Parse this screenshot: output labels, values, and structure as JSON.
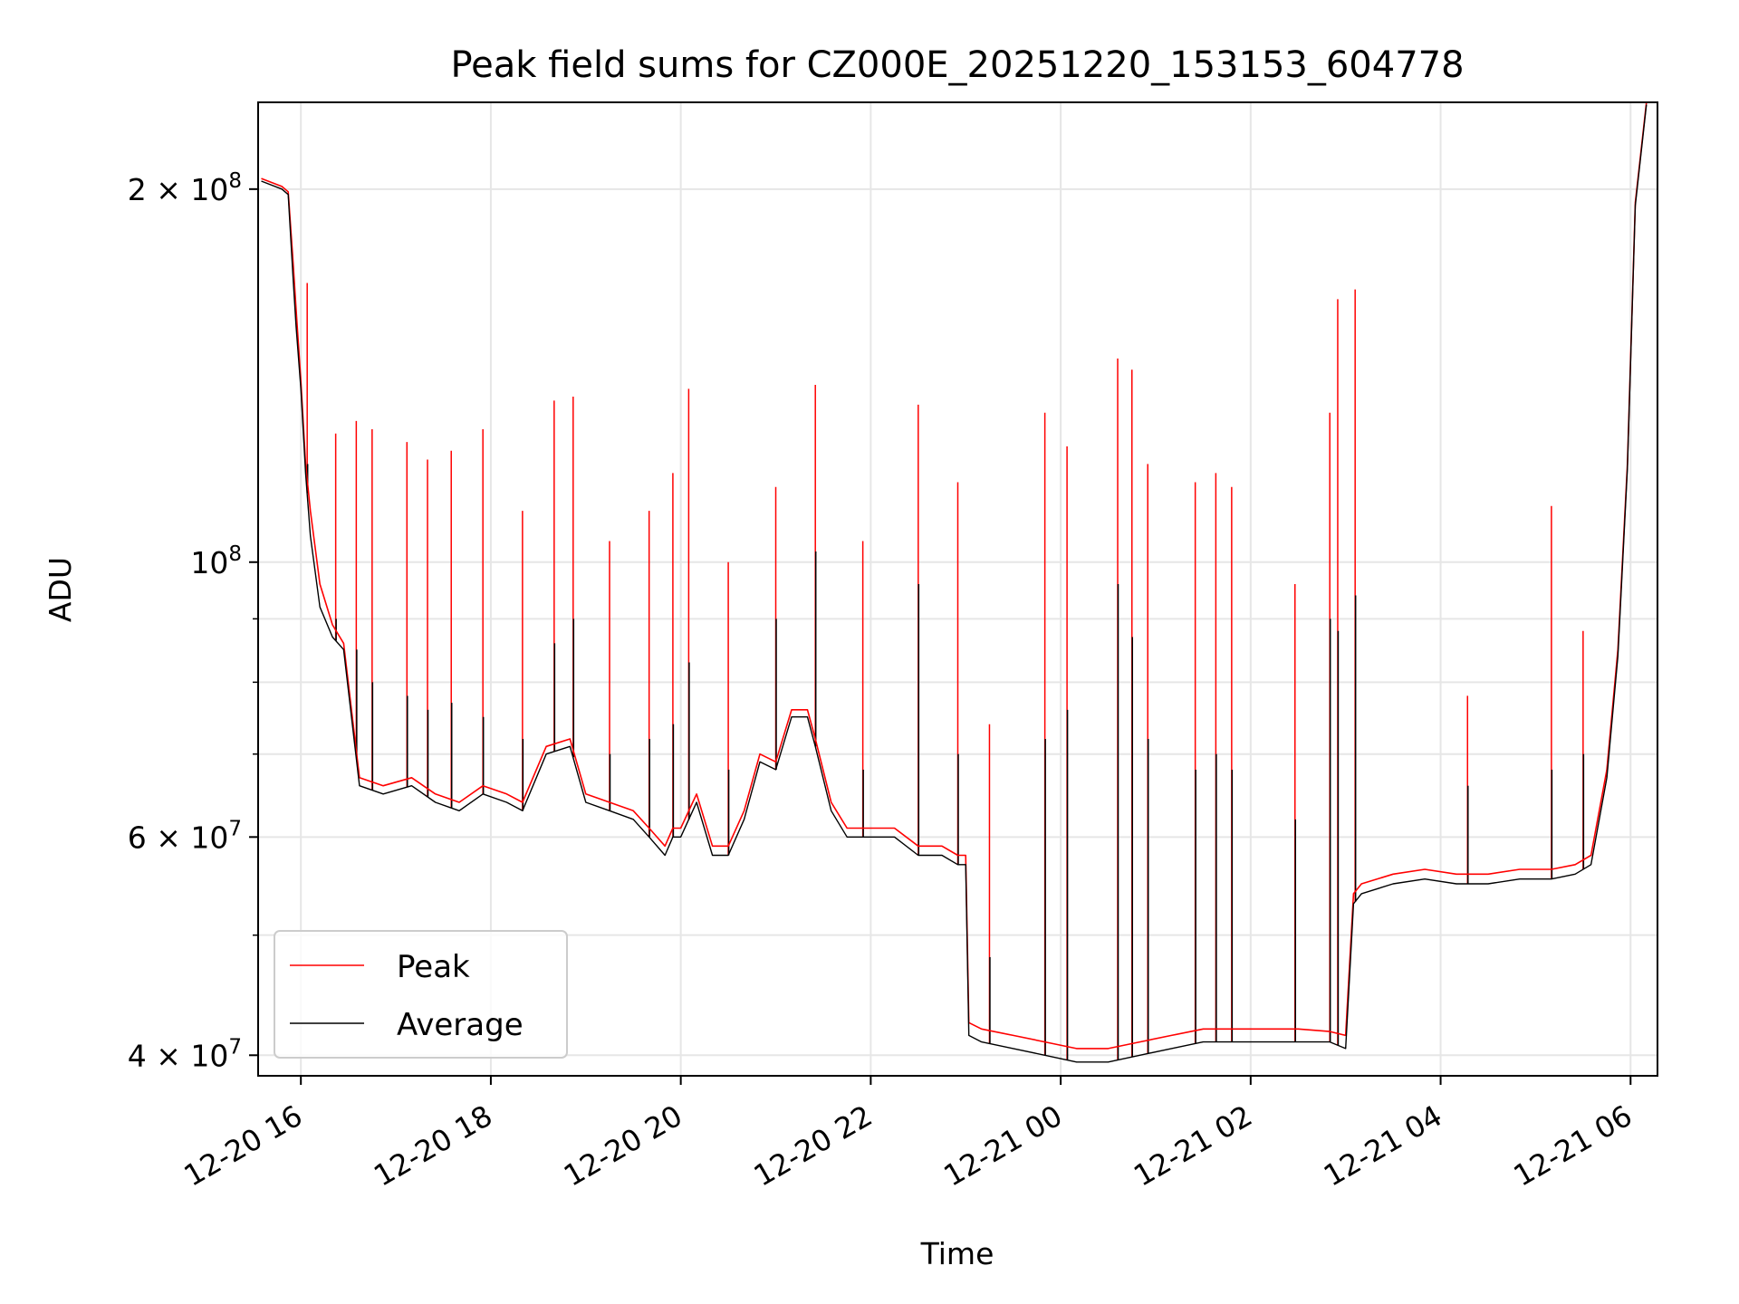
{
  "chart_data": {
    "type": "line",
    "title": "Peak field sums for CZ000E_20251220_153153_604778",
    "xlabel": "Time",
    "ylabel": "ADU",
    "yscale": "log",
    "grid": true,
    "legend_position": "lower-left",
    "xlim": [
      "2025-12-20 15:33",
      "2025-12-21 06:17"
    ],
    "ylim": [
      38500000,
      235000000
    ],
    "x_ticks": [
      "2025-12-20 16:00",
      "2025-12-20 18:00",
      "2025-12-20 20:00",
      "2025-12-20 22:00",
      "2025-12-21 00:00",
      "2025-12-21 02:00",
      "2025-12-21 04:00",
      "2025-12-21 06:00"
    ],
    "x_tick_labels": [
      "12-20 16",
      "12-20 18",
      "12-20 20",
      "12-20 22",
      "12-21 00",
      "12-21 02",
      "12-21 04",
      "12-21 06"
    ],
    "y_major_ticks": [
      40000000,
      60000000,
      100000000,
      200000000
    ],
    "y_major_labels": [
      {
        "mantissa": "4",
        "exp": "7"
      },
      {
        "mantissa": "6",
        "exp": "7"
      },
      {
        "mantissa": "",
        "exp": "8"
      },
      {
        "mantissa": "2",
        "exp": "8"
      }
    ],
    "y_minor_ticks": [
      50000000,
      70000000,
      80000000,
      90000000
    ],
    "series": [
      {
        "name": "Peak",
        "color": "#ff0000",
        "x": [
          "2025-12-20 15:35",
          "2025-12-20 15:48",
          "2025-12-20 15:52",
          "2025-12-20 15:55",
          "2025-12-20 15:57",
          "2025-12-20 16:00",
          "2025-12-20 16:03",
          "2025-12-20 16:06",
          "2025-12-20 16:12",
          "2025-12-20 16:20",
          "2025-12-20 16:27",
          "2025-12-20 16:37",
          "2025-12-20 16:52",
          "2025-12-20 17:10",
          "2025-12-20 17:25",
          "2025-12-20 17:40",
          "2025-12-20 17:55",
          "2025-12-20 18:10",
          "2025-12-20 18:20",
          "2025-12-20 18:35",
          "2025-12-20 18:50",
          "2025-12-20 19:00",
          "2025-12-20 19:15",
          "2025-12-20 19:30",
          "2025-12-20 19:40",
          "2025-12-20 19:50",
          "2025-12-20 19:55",
          "2025-12-20 20:00",
          "2025-12-20 20:10",
          "2025-12-20 20:20",
          "2025-12-20 20:30",
          "2025-12-20 20:40",
          "2025-12-20 20:50",
          "2025-12-20 21:00",
          "2025-12-20 21:10",
          "2025-12-20 21:20",
          "2025-12-20 21:25",
          "2025-12-20 21:35",
          "2025-12-20 21:45",
          "2025-12-20 22:00",
          "2025-12-20 22:15",
          "2025-12-20 22:30",
          "2025-12-20 22:45",
          "2025-12-20 22:55",
          "2025-12-20 23:00",
          "2025-12-20 23:02",
          "2025-12-20 23:10",
          "2025-12-20 23:30",
          "2025-12-20 23:50",
          "2025-12-21 00:10",
          "2025-12-21 00:30",
          "2025-12-21 00:50",
          "2025-12-21 01:10",
          "2025-12-21 01:30",
          "2025-12-21 01:50",
          "2025-12-21 02:10",
          "2025-12-21 02:30",
          "2025-12-21 02:50",
          "2025-12-21 03:00",
          "2025-12-21 03:05",
          "2025-12-21 03:10",
          "2025-12-21 03:30",
          "2025-12-21 03:50",
          "2025-12-21 04:10",
          "2025-12-21 04:30",
          "2025-12-21 04:50",
          "2025-12-21 05:10",
          "2025-12-21 05:25",
          "2025-12-21 05:35",
          "2025-12-21 05:45",
          "2025-12-21 05:52",
          "2025-12-21 05:58",
          "2025-12-21 06:03",
          "2025-12-21 06:10"
        ],
        "y": [
          204000000,
          201000000,
          199000000,
          175000000,
          160000000,
          140000000,
          120000000,
          110000000,
          96000000,
          89000000,
          86000000,
          67000000,
          66000000,
          67000000,
          65000000,
          64000000,
          66000000,
          65000000,
          64000000,
          71000000,
          72000000,
          65000000,
          64000000,
          63000000,
          61000000,
          59000000,
          61000000,
          61000000,
          65000000,
          59000000,
          59000000,
          63000000,
          70000000,
          69000000,
          76000000,
          76000000,
          72000000,
          64000000,
          61000000,
          61000000,
          61000000,
          59000000,
          59000000,
          58000000,
          58000000,
          42500000,
          42000000,
          41500000,
          41000000,
          40500000,
          40500000,
          41000000,
          41500000,
          42000000,
          42000000,
          42000000,
          42000000,
          41800000,
          41500000,
          54000000,
          55000000,
          56000000,
          56500000,
          56000000,
          56000000,
          56500000,
          56500000,
          57000000,
          58000000,
          68000000,
          85000000,
          120000000,
          195000000,
          235000000
        ]
      },
      {
        "name": "Average",
        "color": "#000000",
        "x": [
          "2025-12-20 15:35",
          "2025-12-20 15:48",
          "2025-12-20 15:52",
          "2025-12-20 15:55",
          "2025-12-20 15:57",
          "2025-12-20 16:00",
          "2025-12-20 16:03",
          "2025-12-20 16:06",
          "2025-12-20 16:12",
          "2025-12-20 16:20",
          "2025-12-20 16:27",
          "2025-12-20 16:37",
          "2025-12-20 16:52",
          "2025-12-20 17:10",
          "2025-12-20 17:25",
          "2025-12-20 17:40",
          "2025-12-20 17:55",
          "2025-12-20 18:10",
          "2025-12-20 18:20",
          "2025-12-20 18:35",
          "2025-12-20 18:50",
          "2025-12-20 19:00",
          "2025-12-20 19:15",
          "2025-12-20 19:30",
          "2025-12-20 19:40",
          "2025-12-20 19:50",
          "2025-12-20 19:55",
          "2025-12-20 20:00",
          "2025-12-20 20:10",
          "2025-12-20 20:20",
          "2025-12-20 20:30",
          "2025-12-20 20:40",
          "2025-12-20 20:50",
          "2025-12-20 21:00",
          "2025-12-20 21:10",
          "2025-12-20 21:20",
          "2025-12-20 21:25",
          "2025-12-20 21:35",
          "2025-12-20 21:45",
          "2025-12-20 22:00",
          "2025-12-20 22:15",
          "2025-12-20 22:30",
          "2025-12-20 22:45",
          "2025-12-20 22:55",
          "2025-12-20 23:00",
          "2025-12-20 23:02",
          "2025-12-20 23:10",
          "2025-12-20 23:30",
          "2025-12-20 23:50",
          "2025-12-21 00:10",
          "2025-12-21 00:30",
          "2025-12-21 00:50",
          "2025-12-21 01:10",
          "2025-12-21 01:30",
          "2025-12-21 01:50",
          "2025-12-21 02:10",
          "2025-12-21 02:30",
          "2025-12-21 02:50",
          "2025-12-21 03:00",
          "2025-12-21 03:05",
          "2025-12-21 03:10",
          "2025-12-21 03:30",
          "2025-12-21 03:50",
          "2025-12-21 04:10",
          "2025-12-21 04:30",
          "2025-12-21 04:50",
          "2025-12-21 05:10",
          "2025-12-21 05:25",
          "2025-12-21 05:35",
          "2025-12-21 05:45",
          "2025-12-21 05:52",
          "2025-12-21 05:58",
          "2025-12-21 06:03",
          "2025-12-21 06:10"
        ],
        "y": [
          203000000,
          200000000,
          198000000,
          170000000,
          155000000,
          138000000,
          118000000,
          105000000,
          92000000,
          87000000,
          85000000,
          66000000,
          65000000,
          66000000,
          64000000,
          63000000,
          65000000,
          64000000,
          63000000,
          70000000,
          71000000,
          64000000,
          63000000,
          62000000,
          60000000,
          58000000,
          60000000,
          60000000,
          64000000,
          58000000,
          58000000,
          62000000,
          69000000,
          68000000,
          75000000,
          75000000,
          71000000,
          63000000,
          60000000,
          60000000,
          60000000,
          58000000,
          58000000,
          57000000,
          57000000,
          41500000,
          41000000,
          40500000,
          40000000,
          39500000,
          39500000,
          40000000,
          40500000,
          41000000,
          41000000,
          41000000,
          41000000,
          41000000,
          40500000,
          53000000,
          54000000,
          55000000,
          55500000,
          55000000,
          55000000,
          55500000,
          55500000,
          56000000,
          57000000,
          67000000,
          84000000,
          119000000,
          194000000,
          234000000
        ]
      }
    ],
    "spikes": [
      {
        "x": "2025-12-20 16:04",
        "peak": 168000000,
        "avg": 120000000
      },
      {
        "x": "2025-12-20 16:22",
        "peak": 127000000,
        "avg": 90000000
      },
      {
        "x": "2025-12-20 16:35",
        "peak": 130000000,
        "avg": 85000000
      },
      {
        "x": "2025-12-20 16:45",
        "peak": 128000000,
        "avg": 80000000
      },
      {
        "x": "2025-12-20 17:07",
        "peak": 125000000,
        "avg": 78000000
      },
      {
        "x": "2025-12-20 17:20",
        "peak": 121000000,
        "avg": 76000000
      },
      {
        "x": "2025-12-20 17:35",
        "peak": 123000000,
        "avg": 77000000
      },
      {
        "x": "2025-12-20 17:55",
        "peak": 128000000,
        "avg": 75000000
      },
      {
        "x": "2025-12-20 18:20",
        "peak": 110000000,
        "avg": 72000000
      },
      {
        "x": "2025-12-20 18:40",
        "peak": 135000000,
        "avg": 86000000
      },
      {
        "x": "2025-12-20 18:52",
        "peak": 136000000,
        "avg": 90000000
      },
      {
        "x": "2025-12-20 19:15",
        "peak": 104000000,
        "avg": 70000000
      },
      {
        "x": "2025-12-20 19:40",
        "peak": 110000000,
        "avg": 72000000
      },
      {
        "x": "2025-12-20 19:55",
        "peak": 118000000,
        "avg": 74000000
      },
      {
        "x": "2025-12-20 20:05",
        "peak": 138000000,
        "avg": 83000000
      },
      {
        "x": "2025-12-20 20:30",
        "peak": 100000000,
        "avg": 68000000
      },
      {
        "x": "2025-12-20 21:00",
        "peak": 115000000,
        "avg": 90000000
      },
      {
        "x": "2025-12-20 21:25",
        "peak": 139000000,
        "avg": 102000000
      },
      {
        "x": "2025-12-20 21:55",
        "peak": 104000000,
        "avg": 68000000
      },
      {
        "x": "2025-12-20 22:30",
        "peak": 134000000,
        "avg": 96000000
      },
      {
        "x": "2025-12-20 22:55",
        "peak": 116000000,
        "avg": 70000000
      },
      {
        "x": "2025-12-20 23:15",
        "peak": 74000000,
        "avg": 48000000
      },
      {
        "x": "2025-12-20 23:50",
        "peak": 132000000,
        "avg": 72000000
      },
      {
        "x": "2025-12-21 00:04",
        "peak": 124000000,
        "avg": 76000000
      },
      {
        "x": "2025-12-21 00:36",
        "peak": 146000000,
        "avg": 96000000
      },
      {
        "x": "2025-12-21 00:45",
        "peak": 143000000,
        "avg": 87000000
      },
      {
        "x": "2025-12-21 00:55",
        "peak": 120000000,
        "avg": 72000000
      },
      {
        "x": "2025-12-21 01:25",
        "peak": 116000000,
        "avg": 68000000
      },
      {
        "x": "2025-12-21 01:38",
        "peak": 118000000,
        "avg": 70000000
      },
      {
        "x": "2025-12-21 01:48",
        "peak": 115000000,
        "avg": 68000000
      },
      {
        "x": "2025-12-21 02:28",
        "peak": 96000000,
        "avg": 62000000
      },
      {
        "x": "2025-12-21 02:50",
        "peak": 132000000,
        "avg": 90000000
      },
      {
        "x": "2025-12-21 02:55",
        "peak": 163000000,
        "avg": 88000000
      },
      {
        "x": "2025-12-21 03:06",
        "peak": 166000000,
        "avg": 94000000
      },
      {
        "x": "2025-12-21 04:17",
        "peak": 78000000,
        "avg": 66000000
      },
      {
        "x": "2025-12-21 05:10",
        "peak": 111000000,
        "avg": 68000000
      },
      {
        "x": "2025-12-21 05:30",
        "peak": 88000000,
        "avg": 70000000
      }
    ]
  }
}
